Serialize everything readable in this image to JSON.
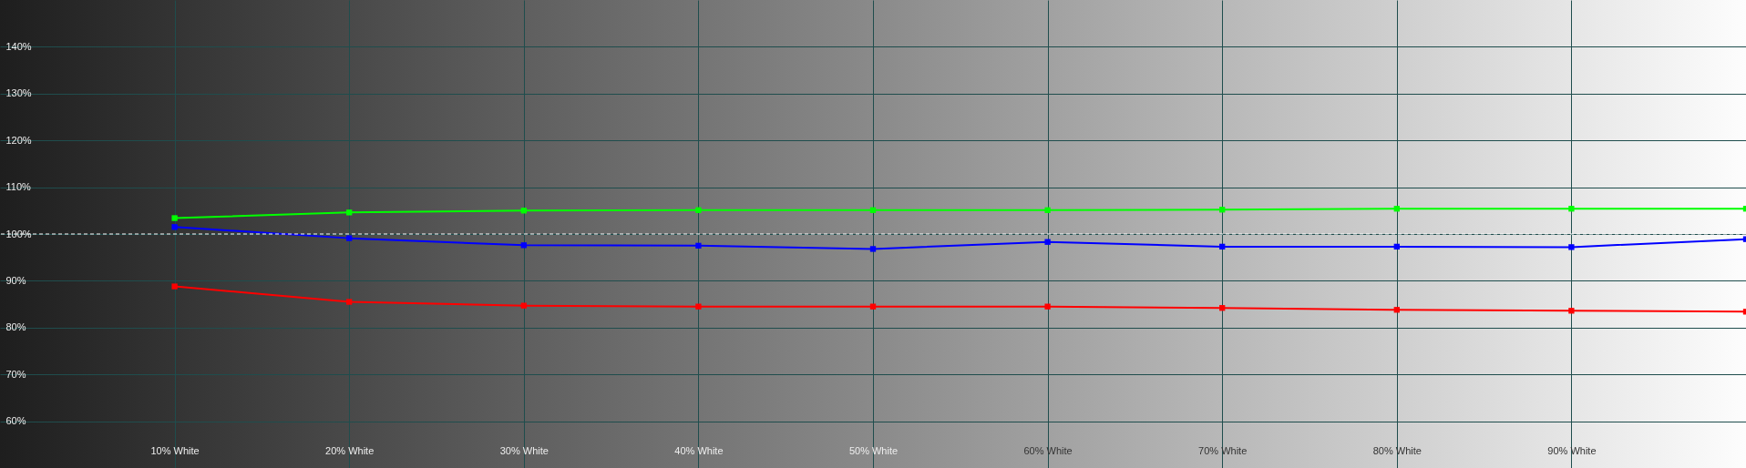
{
  "chart_data": {
    "type": "line",
    "x": [
      10,
      20,
      30,
      40,
      50,
      60,
      70,
      80,
      90,
      100
    ],
    "xlim": [
      0,
      100
    ],
    "xticks": [
      {
        "value": 10,
        "label": "10% White"
      },
      {
        "value": 20,
        "label": "20% White"
      },
      {
        "value": 30,
        "label": "30% White"
      },
      {
        "value": 40,
        "label": "40% White"
      },
      {
        "value": 50,
        "label": "50% White"
      },
      {
        "value": 60,
        "label": "60% White"
      },
      {
        "value": 70,
        "label": "70% White"
      },
      {
        "value": 80,
        "label": "80% White"
      },
      {
        "value": 90,
        "label": "90% White"
      }
    ],
    "ylim": [
      50,
      150
    ],
    "yticks": [
      {
        "value": 60,
        "label": "60%"
      },
      {
        "value": 70,
        "label": "70%"
      },
      {
        "value": 80,
        "label": "80%"
      },
      {
        "value": 90,
        "label": "90%"
      },
      {
        "value": 100,
        "label": "100%"
      },
      {
        "value": 110,
        "label": "110%"
      },
      {
        "value": 120,
        "label": "120%"
      },
      {
        "value": 130,
        "label": "130%"
      },
      {
        "value": 140,
        "label": "140%"
      }
    ],
    "series": [
      {
        "color": "#00ff00",
        "values": [
          103.4,
          104.6,
          105.0,
          105.1,
          105.1,
          105.1,
          105.2,
          105.4,
          105.4,
          105.4
        ]
      },
      {
        "color": "#0000ff",
        "values": [
          101.5,
          99.1,
          97.6,
          97.5,
          96.8,
          98.3,
          97.3,
          97.3,
          97.2,
          98.9
        ]
      },
      {
        "color": "#ff0000",
        "values": [
          88.8,
          85.5,
          84.7,
          84.5,
          84.5,
          84.5,
          84.2,
          83.8,
          83.6,
          83.4
        ]
      }
    ],
    "ref_lines": [
      {
        "axis": "y",
        "value": 100,
        "color": "#ffffff",
        "line_style": "dashed"
      }
    ],
    "grid": true,
    "marker": "square",
    "line_style": "solid"
  }
}
